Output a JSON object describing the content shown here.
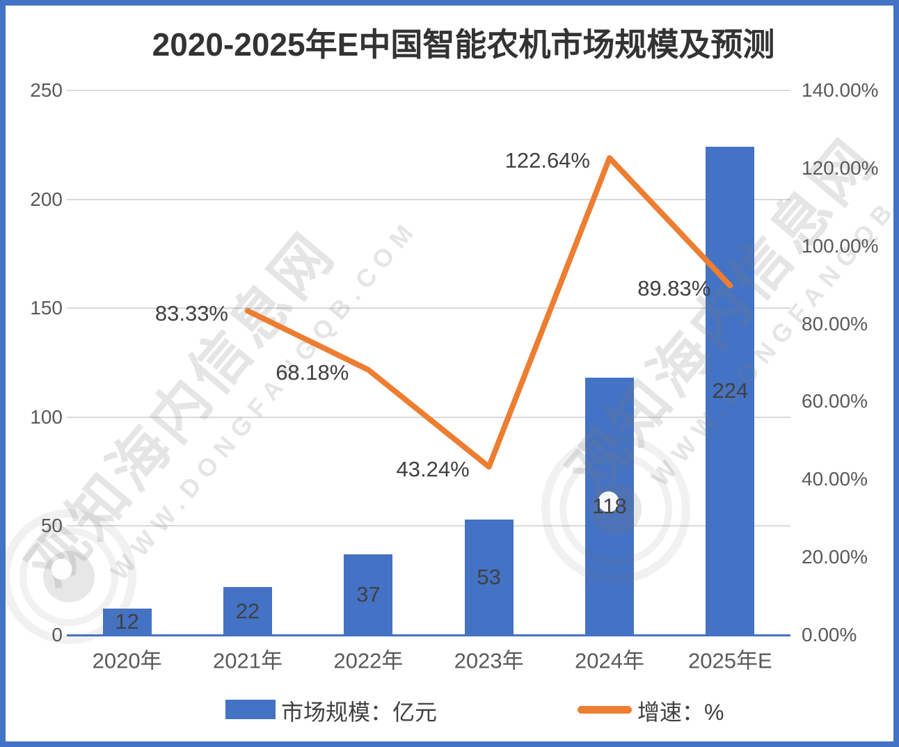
{
  "title": "2020-2025年E中国智能农机市场规模及预测",
  "chart_data": {
    "type": "bar+line",
    "categories": [
      "2020年",
      "2021年",
      "2022年",
      "2023年",
      "2024年",
      "2025年E"
    ],
    "series": [
      {
        "name": "市场规模：亿元",
        "type": "bar",
        "axis": "left",
        "values": [
          12,
          22,
          37,
          53,
          118,
          224
        ],
        "data_labels": [
          "12",
          "22",
          "37",
          "53",
          "118",
          "224"
        ]
      },
      {
        "name": "增速：%",
        "type": "line",
        "axis": "right",
        "values": [
          null,
          83.33,
          68.18,
          43.24,
          122.64,
          89.83
        ],
        "data_labels": [
          "",
          "83.33%",
          "68.18%",
          "43.24%",
          "122.64%",
          "89.83%"
        ]
      }
    ],
    "left_axis": {
      "min": 0,
      "max": 250,
      "ticks": [
        {
          "value": 250,
          "label": "250"
        },
        {
          "value": 200,
          "label": "200"
        },
        {
          "value": 150,
          "label": "150"
        },
        {
          "value": 100,
          "label": "100"
        },
        {
          "value": 50,
          "label": "50"
        },
        {
          "value": 0,
          "label": "0"
        }
      ]
    },
    "right_axis": {
      "min": 0,
      "max": 140,
      "ticks": [
        {
          "value": 140,
          "label": "140.00%"
        },
        {
          "value": 120,
          "label": "120.00%"
        },
        {
          "value": 100,
          "label": "100.00%"
        },
        {
          "value": 80,
          "label": "80.00%"
        },
        {
          "value": 60,
          "label": "60.00%"
        },
        {
          "value": 40,
          "label": "40.00%"
        },
        {
          "value": 20,
          "label": "20.00%"
        },
        {
          "value": 0,
          "label": "0.00%"
        }
      ]
    },
    "grid": true,
    "legend_position": "bottom"
  },
  "watermark": {
    "text_cn": "观知海内信息网",
    "text_url": "WWW.DONGFANGQB.COM"
  },
  "colors": {
    "bar": "#4472C4",
    "line": "#ED7D31",
    "grid": "#D9D9D9",
    "axis_line": "#4472C4",
    "tick_text": "#595959",
    "data_label_text": "#404040",
    "title_text": "#333333",
    "border": "#4472C4"
  }
}
